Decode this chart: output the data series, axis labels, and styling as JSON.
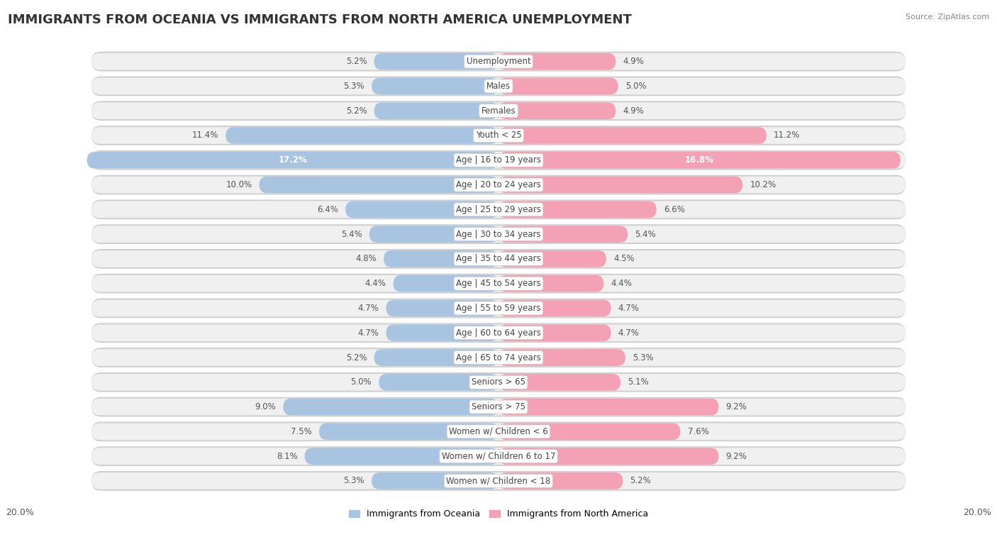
{
  "title": "IMMIGRANTS FROM OCEANIA VS IMMIGRANTS FROM NORTH AMERICA UNEMPLOYMENT",
  "source": "Source: ZipAtlas.com",
  "categories": [
    "Unemployment",
    "Males",
    "Females",
    "Youth < 25",
    "Age | 16 to 19 years",
    "Age | 20 to 24 years",
    "Age | 25 to 29 years",
    "Age | 30 to 34 years",
    "Age | 35 to 44 years",
    "Age | 45 to 54 years",
    "Age | 55 to 59 years",
    "Age | 60 to 64 years",
    "Age | 65 to 74 years",
    "Seniors > 65",
    "Seniors > 75",
    "Women w/ Children < 6",
    "Women w/ Children 6 to 17",
    "Women w/ Children < 18"
  ],
  "oceania": [
    5.2,
    5.3,
    5.2,
    11.4,
    17.2,
    10.0,
    6.4,
    5.4,
    4.8,
    4.4,
    4.7,
    4.7,
    5.2,
    5.0,
    9.0,
    7.5,
    8.1,
    5.3
  ],
  "north_america": [
    4.9,
    5.0,
    4.9,
    11.2,
    16.8,
    10.2,
    6.6,
    5.4,
    4.5,
    4.4,
    4.7,
    4.7,
    5.3,
    5.1,
    9.2,
    7.6,
    9.2,
    5.2
  ],
  "oceania_color": "#a8c4e0",
  "north_america_color": "#f4a0b5",
  "oceania_label_color": "#7bafd4",
  "north_america_label_color": "#e87a9a",
  "row_bg_color": "#e8e8e8",
  "row_inner_color": "#f5f5f5",
  "max_val": 20.0,
  "bar_height": 0.68,
  "title_fontsize": 13,
  "label_fontsize": 8.5,
  "tick_fontsize": 9,
  "value_fontsize": 8.5
}
